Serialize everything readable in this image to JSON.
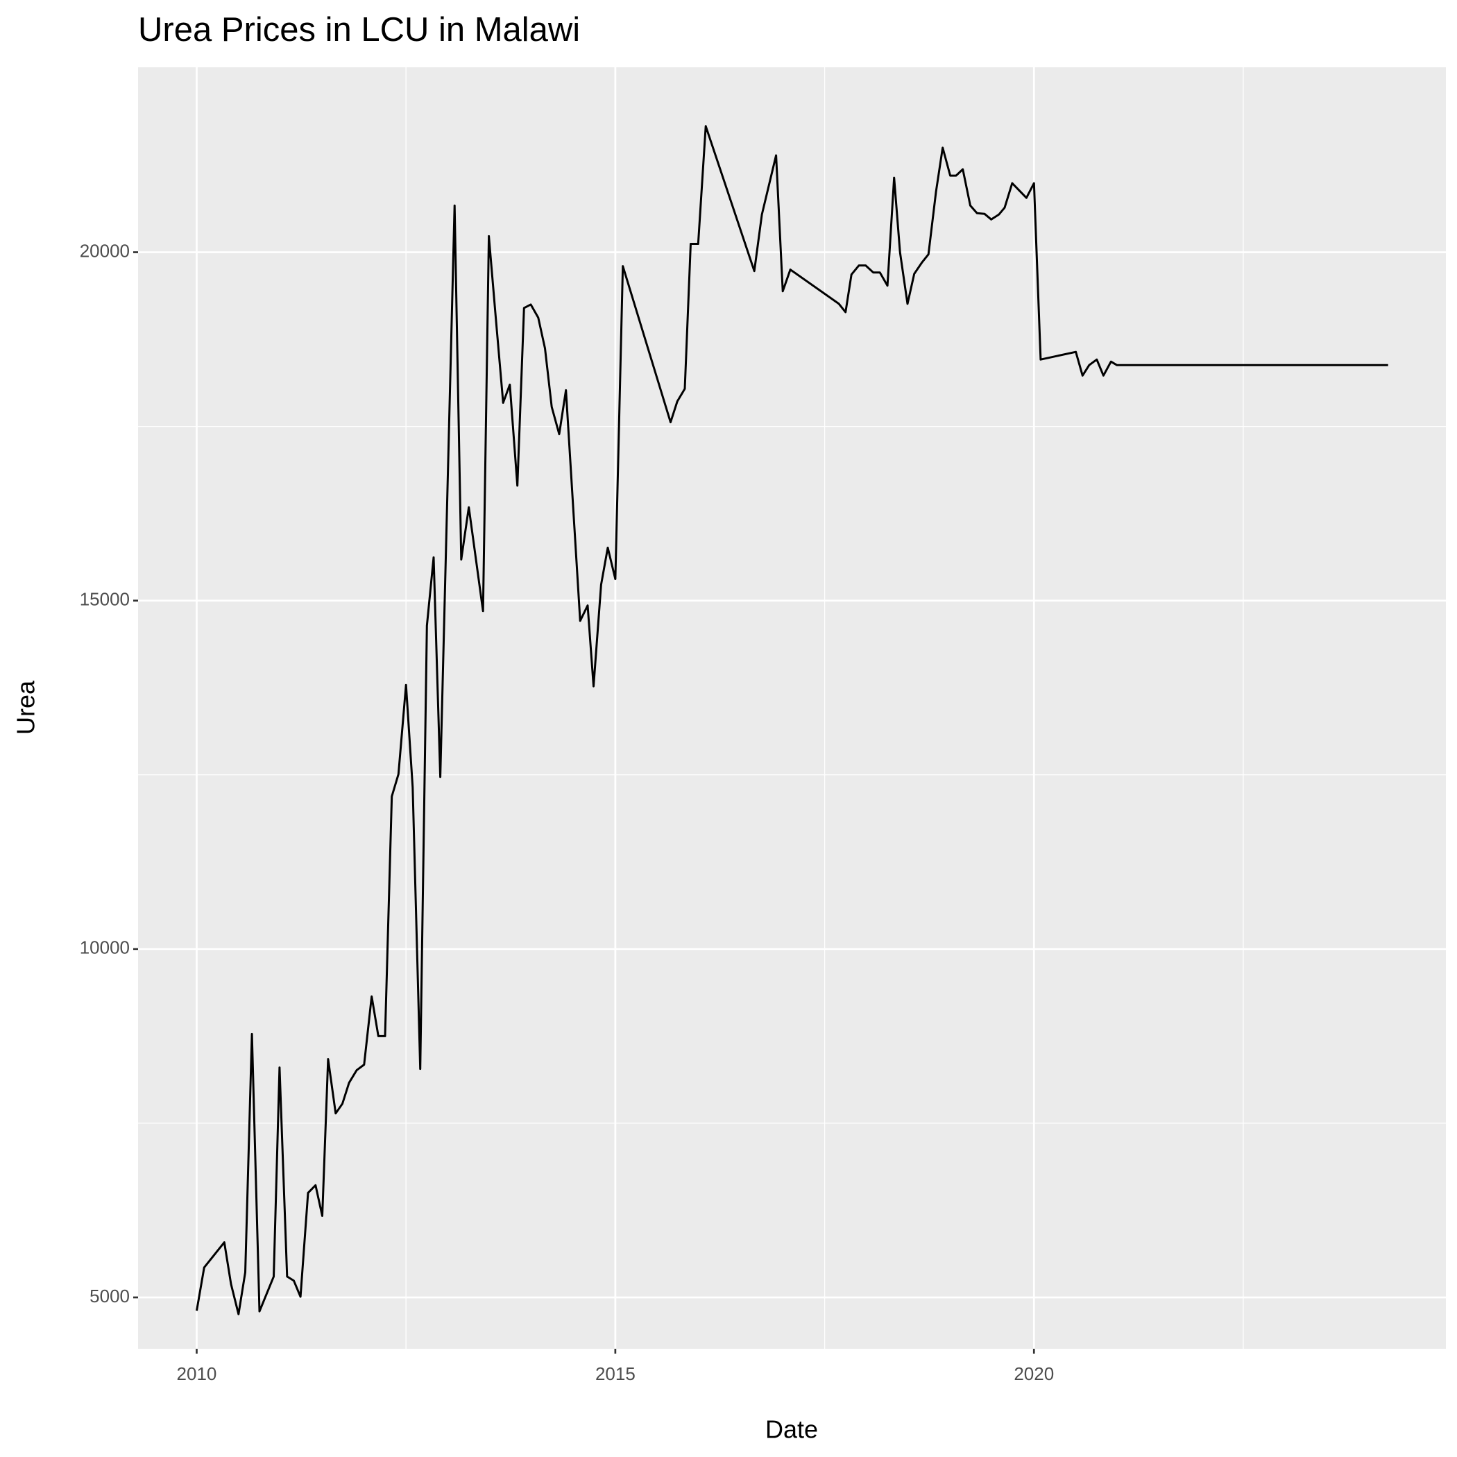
{
  "chart_data": {
    "type": "line",
    "title": "Urea Prices in LCU in Malawi",
    "x_label": "Date",
    "y_label": "Urea",
    "x": [
      2010.0,
      2010.09,
      2010.33,
      2010.41,
      2010.5,
      2010.58,
      2010.66,
      2010.75,
      2010.92,
      2010.99,
      2011.08,
      2011.16,
      2011.24,
      2011.33,
      2011.42,
      2011.5,
      2011.57,
      2011.66,
      2011.74,
      2011.82,
      2011.91,
      2012.0,
      2012.09,
      2012.17,
      2012.25,
      2012.33,
      2012.41,
      2012.5,
      2012.58,
      2012.67,
      2012.75,
      2012.83,
      2012.91,
      2013.08,
      2013.16,
      2013.25,
      2013.42,
      2013.49,
      2013.57,
      2013.66,
      2013.74,
      2013.83,
      2013.91,
      2013.99,
      2014.08,
      2014.16,
      2014.24,
      2014.33,
      2014.41,
      2014.58,
      2014.67,
      2014.74,
      2014.83,
      2014.91,
      2015.0,
      2015.09,
      2015.66,
      2015.74,
      2015.83,
      2015.9,
      2015.99,
      2016.08,
      2016.66,
      2016.75,
      2016.92,
      2017.0,
      2017.09,
      2017.67,
      2017.75,
      2017.82,
      2017.91,
      2017.99,
      2018.08,
      2018.16,
      2018.25,
      2018.33,
      2018.4,
      2018.49,
      2018.57,
      2018.66,
      2018.74,
      2018.83,
      2018.91,
      2019.0,
      2019.07,
      2019.15,
      2019.24,
      2019.32,
      2019.41,
      2019.49,
      2019.58,
      2019.65,
      2019.74,
      2019.91,
      2020.0,
      2020.08,
      2020.5,
      2020.58,
      2020.66,
      2020.75,
      2020.83,
      2020.92,
      2020.99,
      2024.23
    ],
    "values": [
      4810,
      5430,
      5790,
      5190,
      4760,
      5360,
      8780,
      4800,
      5300,
      8300,
      5300,
      5240,
      5010,
      6500,
      6610,
      6170,
      8420,
      7640,
      7780,
      8080,
      8260,
      8340,
      9320,
      8750,
      8750,
      12190,
      12510,
      13790,
      12320,
      8280,
      14640,
      15620,
      12470,
      20670,
      15590,
      16340,
      14850,
      20230,
      19090,
      17840,
      18100,
      16650,
      19200,
      19250,
      19060,
      18620,
      17780,
      17390,
      18020,
      14710,
      14930,
      13770,
      15230,
      15760,
      15310,
      19800,
      17560,
      17860,
      18040,
      20120,
      20120,
      21810,
      19730,
      20540,
      21390,
      19440,
      19750,
      19260,
      19140,
      19680,
      19810,
      19810,
      19710,
      19710,
      19520,
      21070,
      20000,
      19260,
      19690,
      19850,
      19970,
      20870,
      21500,
      21100,
      21100,
      21190,
      20670,
      20560,
      20550,
      20470,
      20540,
      20640,
      20990,
      20780,
      20990,
      18460,
      18570,
      18230,
      18380,
      18460,
      18230,
      18430,
      18380,
      18380
    ],
    "color": "#000000",
    "xlim": [
      2009.3,
      2024.92
    ],
    "xticks": [
      2010,
      2015,
      2020
    ],
    "xminor": [
      2012.5,
      2017.5,
      2022.5
    ],
    "ylim": [
      4263,
      22654
    ],
    "yticks": [
      5000,
      10000,
      15000,
      20000
    ],
    "yminor": [
      7500,
      12500,
      17500
    ],
    "grid": true
  }
}
